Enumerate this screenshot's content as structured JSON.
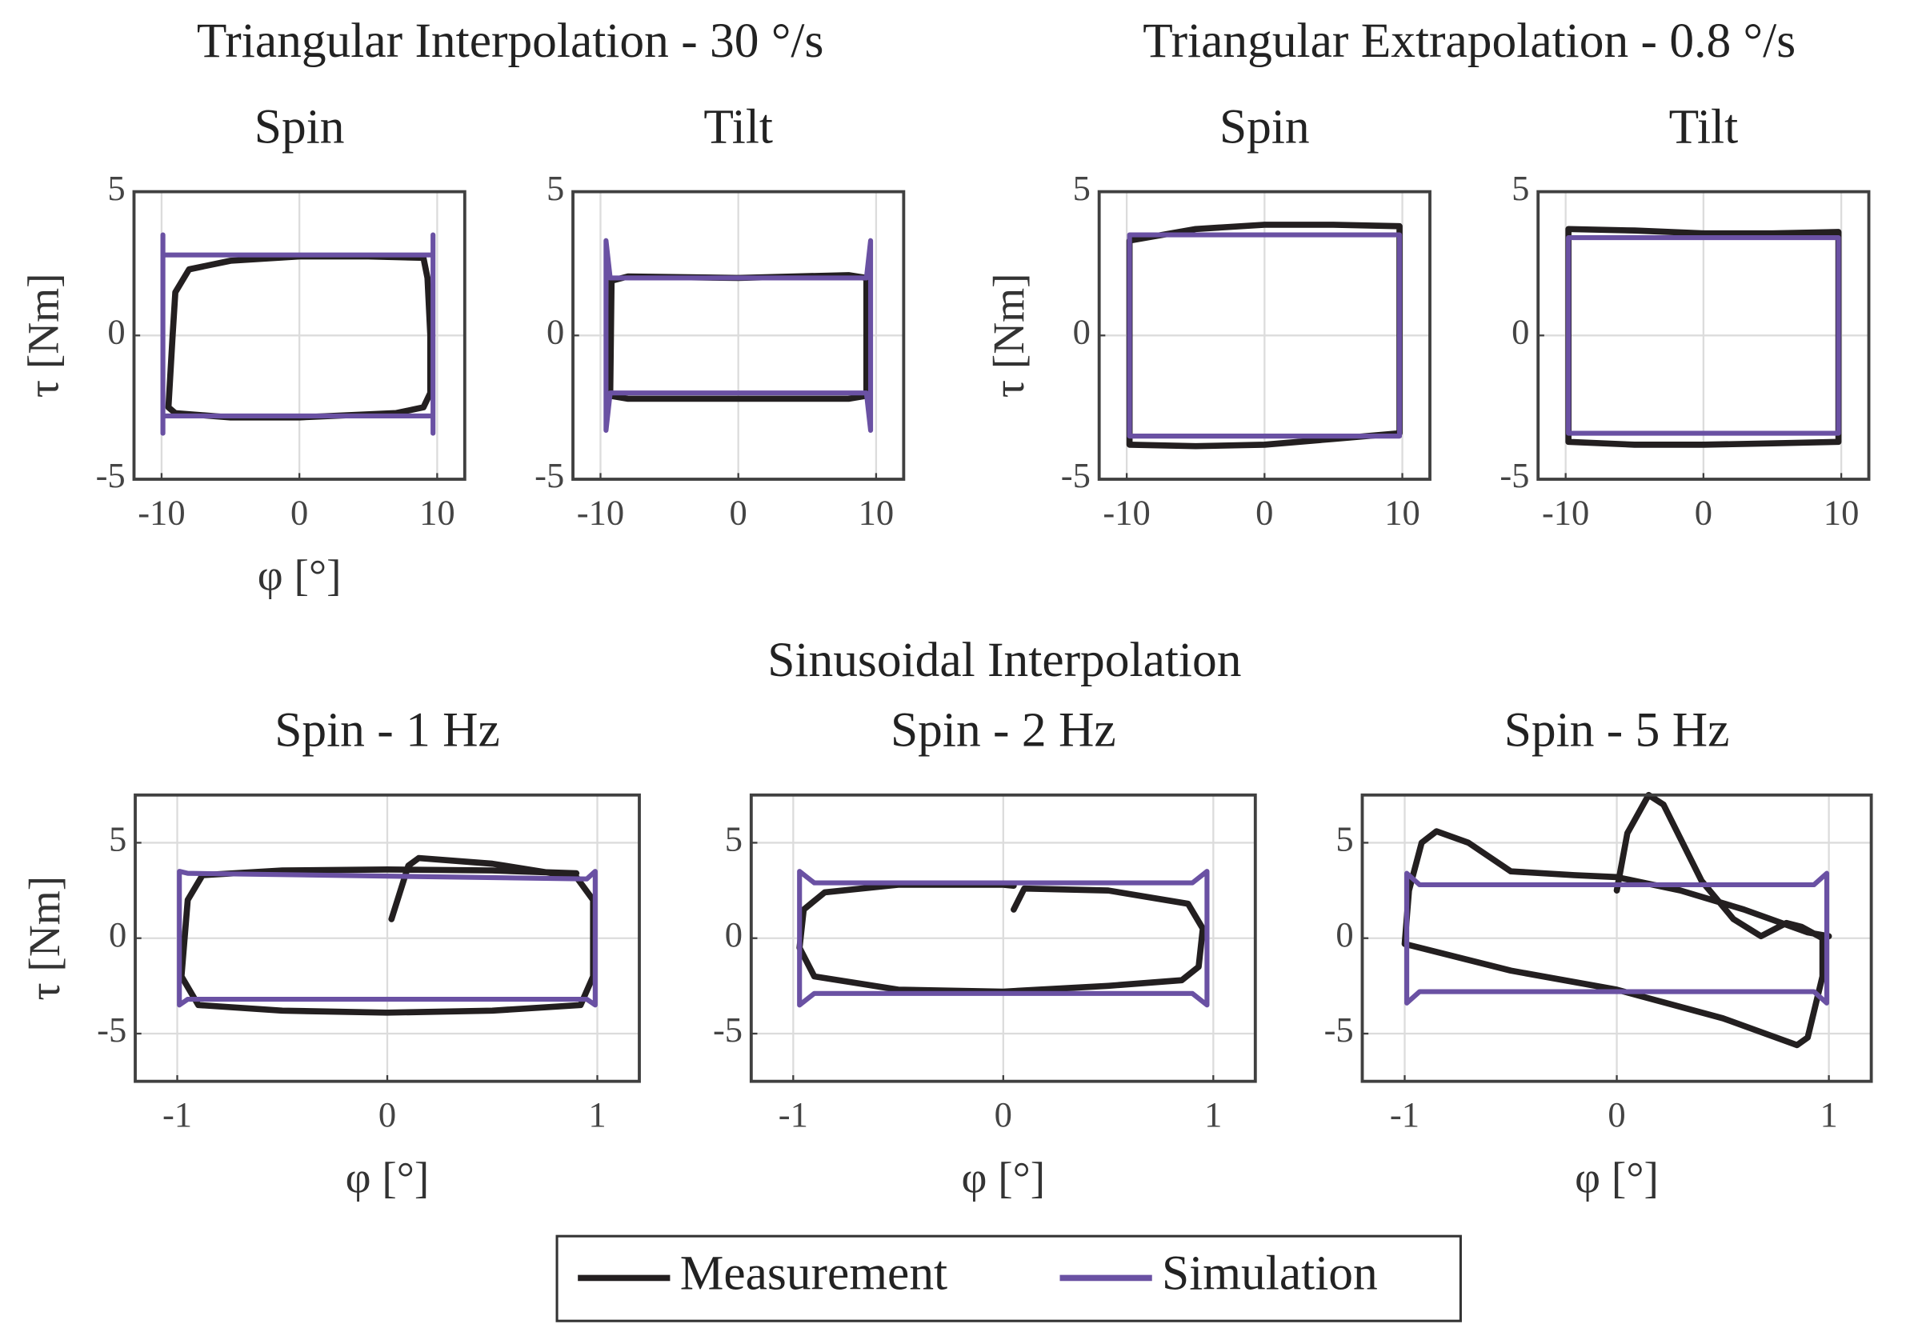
{
  "group_titles": [
    "Triangular Interpolation - 30 °/s",
    "Triangular Extrapolation - 0.8 °/s",
    "Sinusoidal Interpolation"
  ],
  "chart_data": [
    {
      "type": "line",
      "title": "Spin",
      "xlabel": "φ [°]",
      "ylabel": "τ [Nm]",
      "xlim": [
        -12,
        12
      ],
      "ylim": [
        -5,
        5
      ],
      "xticks": [
        -10,
        0,
        10
      ],
      "yticks": [
        -5,
        0,
        5
      ],
      "grid": true,
      "series": [
        {
          "name": "Measurement",
          "color": "#231f20",
          "x": [
            -9.5,
            -9.2,
            -9,
            -8,
            -5,
            0,
            5,
            9,
            9.3,
            9.5,
            9.5,
            9,
            7,
            0,
            -5,
            -9,
            -9.5
          ],
          "y": [
            -2.5,
            0,
            1.5,
            2.3,
            2.6,
            2.75,
            2.75,
            2.7,
            2,
            0,
            -2,
            -2.5,
            -2.7,
            -2.85,
            -2.85,
            -2.7,
            -2.5
          ]
        },
        {
          "name": "Simulation",
          "color": "#6a51a3",
          "x": [
            -9.9,
            -9.9,
            -9.9,
            9.7,
            9.7,
            9.7,
            9.7,
            -9.9,
            -9.9
          ],
          "y": [
            -3.4,
            3.5,
            2.8,
            2.8,
            3.5,
            -3.4,
            -2.8,
            -2.8,
            -3.4
          ]
        }
      ]
    },
    {
      "type": "line",
      "title": "Tilt",
      "xlim": [
        -12,
        12
      ],
      "ylim": [
        -5,
        5
      ],
      "xticks": [
        -10,
        0,
        10
      ],
      "yticks": [
        -5,
        0,
        5
      ],
      "grid": true,
      "series": [
        {
          "name": "Measurement",
          "color": "#231f20",
          "x": [
            -9.3,
            -9.2,
            -8,
            0,
            8,
            9.3,
            9.3,
            8,
            0,
            -8,
            -9.3
          ],
          "y": [
            -2.1,
            1.9,
            2.05,
            2.0,
            2.1,
            2.0,
            -2.1,
            -2.2,
            -2.2,
            -2.2,
            -2.1
          ]
        },
        {
          "name": "Simulation",
          "color": "#6a51a3",
          "x": [
            -9.6,
            -9.6,
            -9.3,
            9.3,
            9.6,
            9.6,
            9.3,
            -9.3,
            -9.6
          ],
          "y": [
            -3.3,
            3.3,
            2.0,
            2.0,
            3.3,
            -3.3,
            -2.0,
            -2.0,
            -3.3
          ]
        }
      ]
    },
    {
      "type": "line",
      "title": "Spin",
      "ylabel": "τ [Nm]",
      "xlim": [
        -12,
        12
      ],
      "ylim": [
        -5,
        5
      ],
      "xticks": [
        -10,
        0,
        10
      ],
      "yticks": [
        -5,
        0,
        5
      ],
      "grid": true,
      "series": [
        {
          "name": "Measurement",
          "color": "#231f20",
          "x": [
            -9.8,
            -5,
            0,
            5,
            9.8,
            9.8,
            5,
            0,
            -5,
            -9.8,
            -9.8
          ],
          "y": [
            3.3,
            3.7,
            3.85,
            3.85,
            3.8,
            -3.4,
            -3.6,
            -3.8,
            -3.85,
            -3.8,
            3.3
          ]
        },
        {
          "name": "Simulation",
          "color": "#6a51a3",
          "x": [
            -9.8,
            -9.8,
            9.8,
            9.8,
            -9.8
          ],
          "y": [
            -3.5,
            3.5,
            3.5,
            -3.5,
            -3.5
          ]
        }
      ]
    },
    {
      "type": "line",
      "title": "Tilt",
      "xlim": [
        -12,
        12
      ],
      "ylim": [
        -5,
        5
      ],
      "xticks": [
        -10,
        0,
        10
      ],
      "yticks": [
        -5,
        0,
        5
      ],
      "grid": true,
      "series": [
        {
          "name": "Measurement",
          "color": "#231f20",
          "x": [
            -9.8,
            -5,
            0,
            5,
            9.8,
            9.8,
            5,
            0,
            -5,
            -9.8,
            -9.8
          ],
          "y": [
            3.7,
            3.65,
            3.55,
            3.55,
            3.6,
            -3.7,
            -3.75,
            -3.8,
            -3.8,
            -3.7,
            3.7
          ]
        },
        {
          "name": "Simulation",
          "color": "#6a51a3",
          "x": [
            -9.8,
            -9.8,
            9.8,
            9.8,
            -9.8
          ],
          "y": [
            -3.4,
            3.4,
            3.4,
            -3.4,
            -3.4
          ]
        }
      ]
    },
    {
      "type": "line",
      "title": "Spin - 1 Hz",
      "xlabel": "φ [°]",
      "ylabel": "τ [Nm]",
      "xlim": [
        -1.2,
        1.2
      ],
      "ylim": [
        -7.5,
        7.5
      ],
      "xticks": [
        -1,
        0,
        1
      ],
      "yticks": [
        -5,
        0,
        5
      ],
      "grid": true,
      "series": [
        {
          "name": "Measurement",
          "color": "#231f20",
          "x": [
            0.02,
            0.1,
            0.15,
            0.5,
            0.9,
            0.98,
            0.98,
            0.92,
            0.5,
            0,
            -0.5,
            -0.9,
            -0.98,
            -0.95,
            -0.88,
            -0.5,
            0,
            0.5,
            0.9
          ],
          "y": [
            1,
            3.8,
            4.2,
            3.9,
            3.2,
            2,
            -2,
            -3.5,
            -3.8,
            -3.9,
            -3.8,
            -3.5,
            -2,
            2,
            3.3,
            3.55,
            3.6,
            3.55,
            3.4
          ]
        },
        {
          "name": "Simulation",
          "color": "#6a51a3",
          "x": [
            -0.99,
            -0.99,
            -0.95,
            0.95,
            0.99,
            0.99,
            0.95,
            -0.95,
            -0.99
          ],
          "y": [
            -3.5,
            3.5,
            3.4,
            3.1,
            3.5,
            -3.5,
            -3.2,
            -3.2,
            -3.5
          ]
        }
      ]
    },
    {
      "type": "line",
      "title": "Spin - 2 Hz",
      "xlabel": "φ [°]",
      "xlim": [
        -1.2,
        1.2
      ],
      "ylim": [
        -7.5,
        7.5
      ],
      "xticks": [
        -1,
        0,
        1
      ],
      "yticks": [
        -5,
        0,
        5
      ],
      "grid": true,
      "series": [
        {
          "name": "Measurement",
          "color": "#231f20",
          "x": [
            0.05,
            0.1,
            0.5,
            0.88,
            0.95,
            0.93,
            0.85,
            0.5,
            0,
            -0.5,
            -0.9,
            -0.97,
            -0.95,
            -0.85,
            -0.5,
            0,
            0.05
          ],
          "y": [
            1.5,
            2.6,
            2.5,
            1.8,
            0.5,
            -1.5,
            -2.2,
            -2.5,
            -2.8,
            -2.7,
            -2.0,
            -0.5,
            1.5,
            2.4,
            2.8,
            2.8,
            2.75
          ]
        },
        {
          "name": "Simulation",
          "color": "#6a51a3",
          "x": [
            -0.97,
            -0.97,
            -0.9,
            0.9,
            0.97,
            0.97,
            0.9,
            -0.9,
            -0.97
          ],
          "y": [
            -3.5,
            3.5,
            2.9,
            2.9,
            3.5,
            -3.5,
            -2.9,
            -2.9,
            -3.5
          ]
        }
      ]
    },
    {
      "type": "line",
      "title": "Spin - 5 Hz",
      "xlabel": "φ [°]",
      "xlim": [
        -1.2,
        1.2
      ],
      "ylim": [
        -7.5,
        7.5
      ],
      "xticks": [
        -1,
        0,
        1
      ],
      "yticks": [
        -5,
        0,
        5
      ],
      "grid": true,
      "series": [
        {
          "name": "Measurement",
          "color": "#231f20",
          "x": [
            0,
            0.05,
            0.15,
            0.22,
            0.4,
            0.55,
            0.68,
            0.8,
            0.87,
            0.97,
            0.97,
            0.9,
            0.85,
            0.5,
            0,
            -0.5,
            -1,
            -0.98,
            -0.92,
            -0.85,
            -0.7,
            -0.5,
            -0.2,
            0,
            0.3,
            0.6,
            0.9,
            1
          ],
          "y": [
            2.5,
            5.5,
            7.5,
            7,
            3,
            1,
            0.1,
            0.8,
            0.6,
            0,
            -2,
            -5.2,
            -5.6,
            -4.2,
            -2.7,
            -1.7,
            -0.3,
            2.5,
            5,
            5.6,
            5,
            3.5,
            3.3,
            3.2,
            2.5,
            1.5,
            0.3,
            0.1
          ]
        },
        {
          "name": "Simulation",
          "color": "#6a51a3",
          "x": [
            -0.99,
            -0.99,
            -0.93,
            0.93,
            0.99,
            0.99,
            0.93,
            -0.93,
            -0.99
          ],
          "y": [
            -3.4,
            3.4,
            2.8,
            2.8,
            3.4,
            -3.4,
            -2.8,
            -2.8,
            -3.4
          ]
        }
      ]
    }
  ]
}
